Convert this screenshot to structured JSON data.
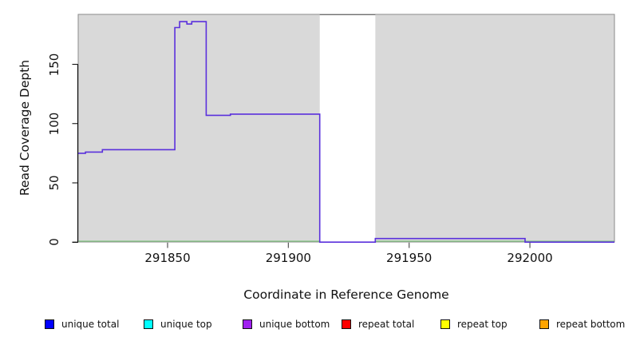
{
  "chart_data": {
    "type": "line",
    "title": "",
    "xlabel": "Coordinate in Reference Genome",
    "ylabel": "Read Coverage Depth",
    "xlim": [
      291813,
      292035
    ],
    "ylim": [
      0,
      192
    ],
    "x_ticks": [
      291850,
      291900,
      291950,
      292000
    ],
    "y_ticks": [
      0,
      50,
      100,
      150
    ],
    "grid": false,
    "legend_position": "bottom",
    "plot_bg_color": "#d9d9d9",
    "frame_color": "#8a8a8a",
    "baseline_color": "#84c884",
    "line_color": "#5a30dc",
    "uncovered_region": {
      "x_start": 291913,
      "x_end": 291936
    },
    "series": [
      {
        "name": "unique total",
        "style": "step",
        "points": [
          [
            291813,
            75
          ],
          [
            291816,
            76
          ],
          [
            291823,
            78
          ],
          [
            291853,
            181
          ],
          [
            291855,
            186
          ],
          [
            291858,
            184
          ],
          [
            291860,
            186
          ],
          [
            291866,
            107
          ],
          [
            291876,
            108
          ],
          [
            291913,
            0
          ],
          [
            291936,
            3
          ],
          [
            291998,
            0
          ],
          [
            292035,
            0
          ]
        ]
      }
    ],
    "legend": [
      {
        "label": "unique total",
        "color": "#0000ff"
      },
      {
        "label": "unique top",
        "color": "#00ffff"
      },
      {
        "label": "unique bottom",
        "color": "#a020f0"
      },
      {
        "label": "repeat total",
        "color": "#ff0000"
      },
      {
        "label": "repeat top",
        "color": "#ffff00"
      },
      {
        "label": "repeat bottom",
        "color": "#ffa500"
      }
    ]
  }
}
